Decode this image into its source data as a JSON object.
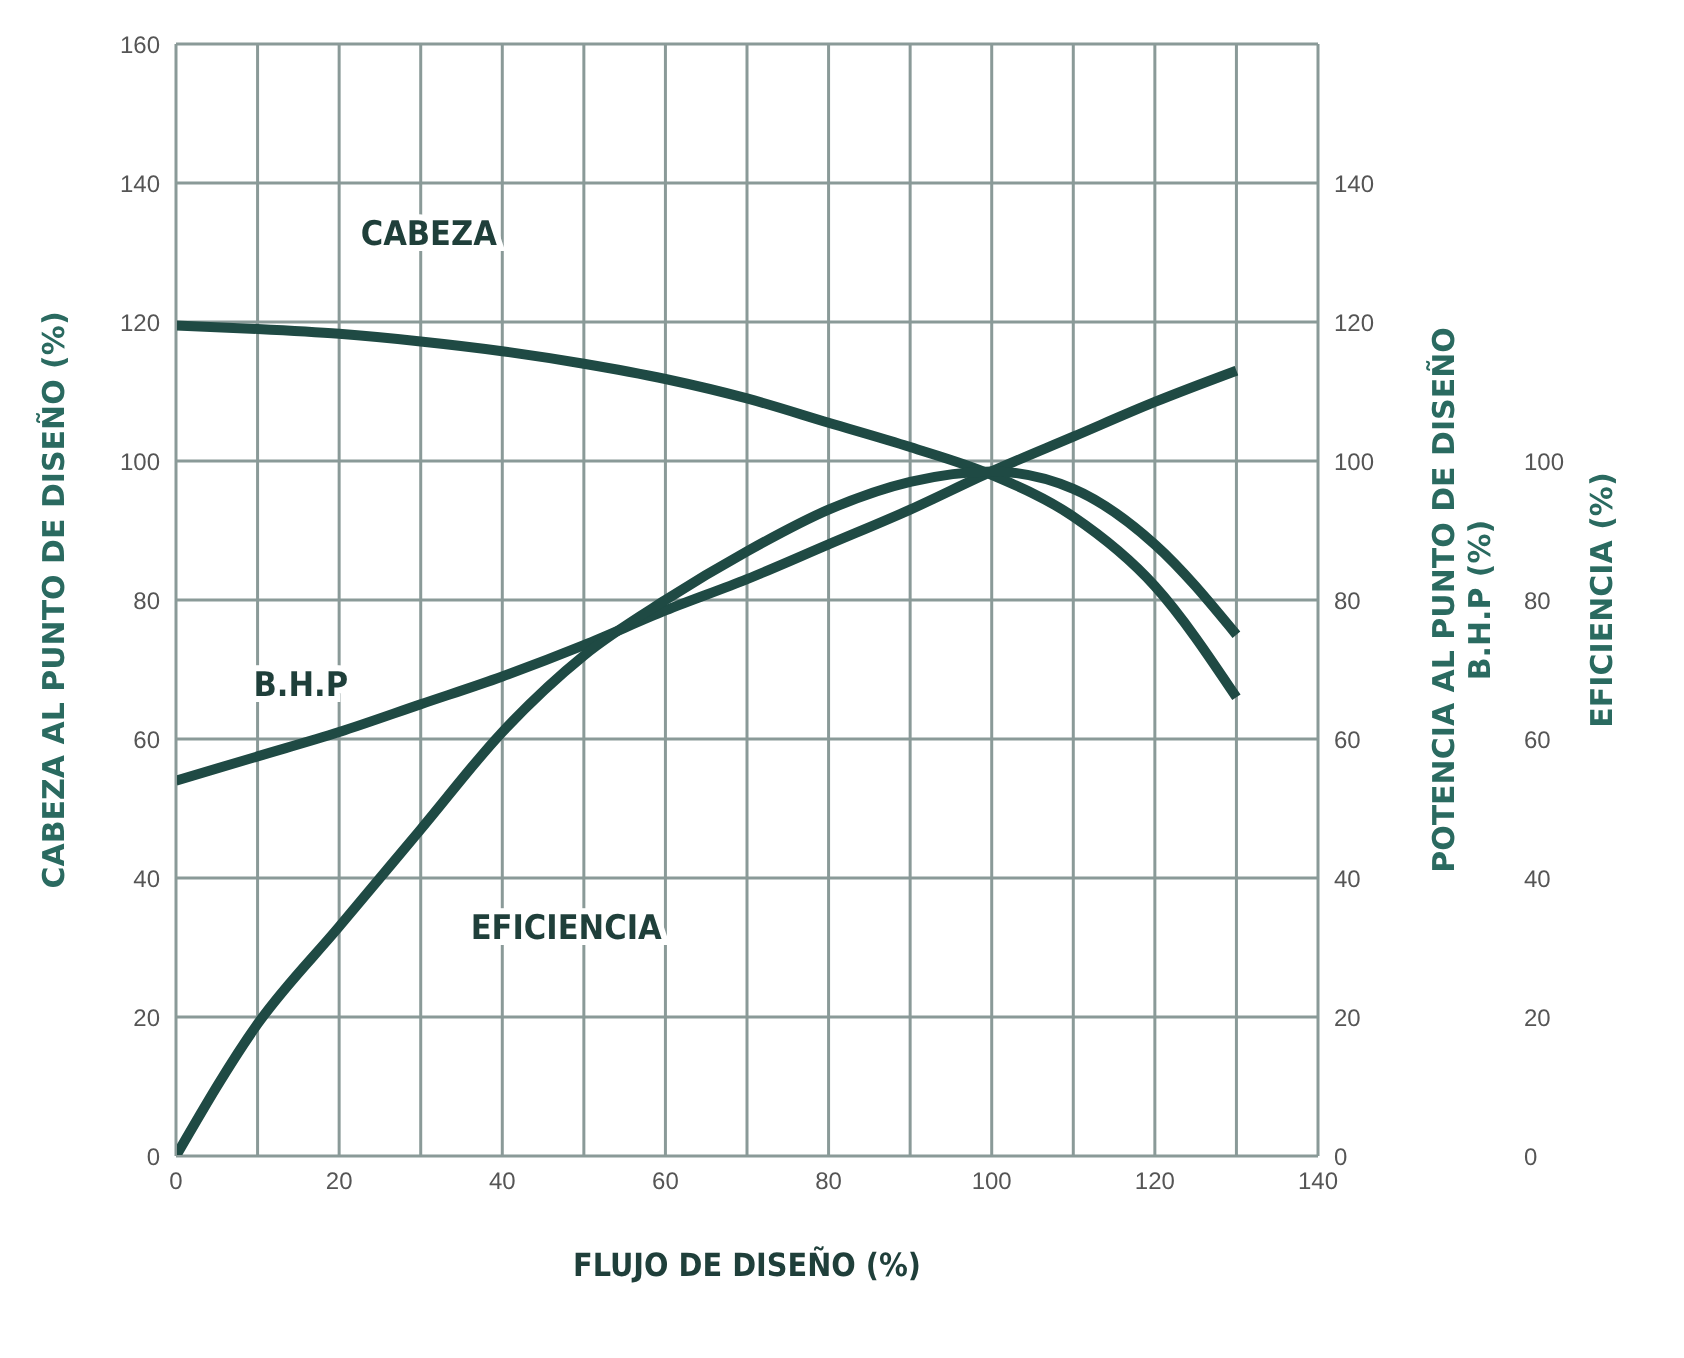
{
  "chart_data": {
    "type": "line",
    "xlabel": "FLUJO DE DISEÑO (%)",
    "ylabel": "CABEZA AL PUNTO DE DISEÑO (%)",
    "y2label": "POTENCIA AL PUNTO DE DISEÑO\nB.H.P (%)",
    "y3label": "EFICIENCIA (%)",
    "x": [
      0,
      10,
      20,
      30,
      40,
      50,
      60,
      70,
      80,
      90,
      100,
      110,
      120,
      130
    ],
    "series": [
      {
        "name": "CABEZA",
        "color": "#1f4a44",
        "values": [
          119.5,
          119,
          118.3,
          117.2,
          115.8,
          114,
          111.8,
          109,
          105.5,
          102,
          98,
          92,
          82,
          66
        ]
      },
      {
        "name": "B.H.P",
        "color": "#1f4a44",
        "values": [
          54,
          57.5,
          61,
          65,
          69,
          73.5,
          78.5,
          83,
          88,
          93,
          98.5,
          103.5,
          108.5,
          113
        ]
      },
      {
        "name": "EFICIENCIA",
        "color": "#1f4a44",
        "values": [
          0,
          19,
          33,
          47,
          61,
          72,
          80,
          87,
          93,
          97,
          98.5,
          96,
          88,
          75
        ]
      }
    ],
    "xlim": [
      0,
      140
    ],
    "xticks": [
      0,
      {
        "value": 10,
        "label": null
      },
      20,
      {
        "value": 30,
        "label": null
      },
      40,
      {
        "value": 50,
        "label": null
      },
      60,
      {
        "value": 70,
        "label": null
      },
      80,
      {
        "value": 90,
        "label": null
      },
      100,
      {
        "value": 110,
        "label": null
      },
      120,
      {
        "value": 130,
        "label": null
      },
      140
    ],
    "ylim": [
      0,
      160
    ],
    "yticks": [
      0,
      20,
      40,
      60,
      80,
      100,
      120,
      140,
      160
    ],
    "y2lim": [
      0,
      160
    ],
    "y2ticks": [
      0,
      20,
      40,
      60,
      80,
      100,
      120,
      140
    ],
    "y3lim": [
      0,
      160
    ],
    "y3ticks": [
      0,
      20,
      40,
      60,
      80,
      100
    ],
    "grid": true,
    "legend": false,
    "marker": "none",
    "line_style": "solid"
  }
}
